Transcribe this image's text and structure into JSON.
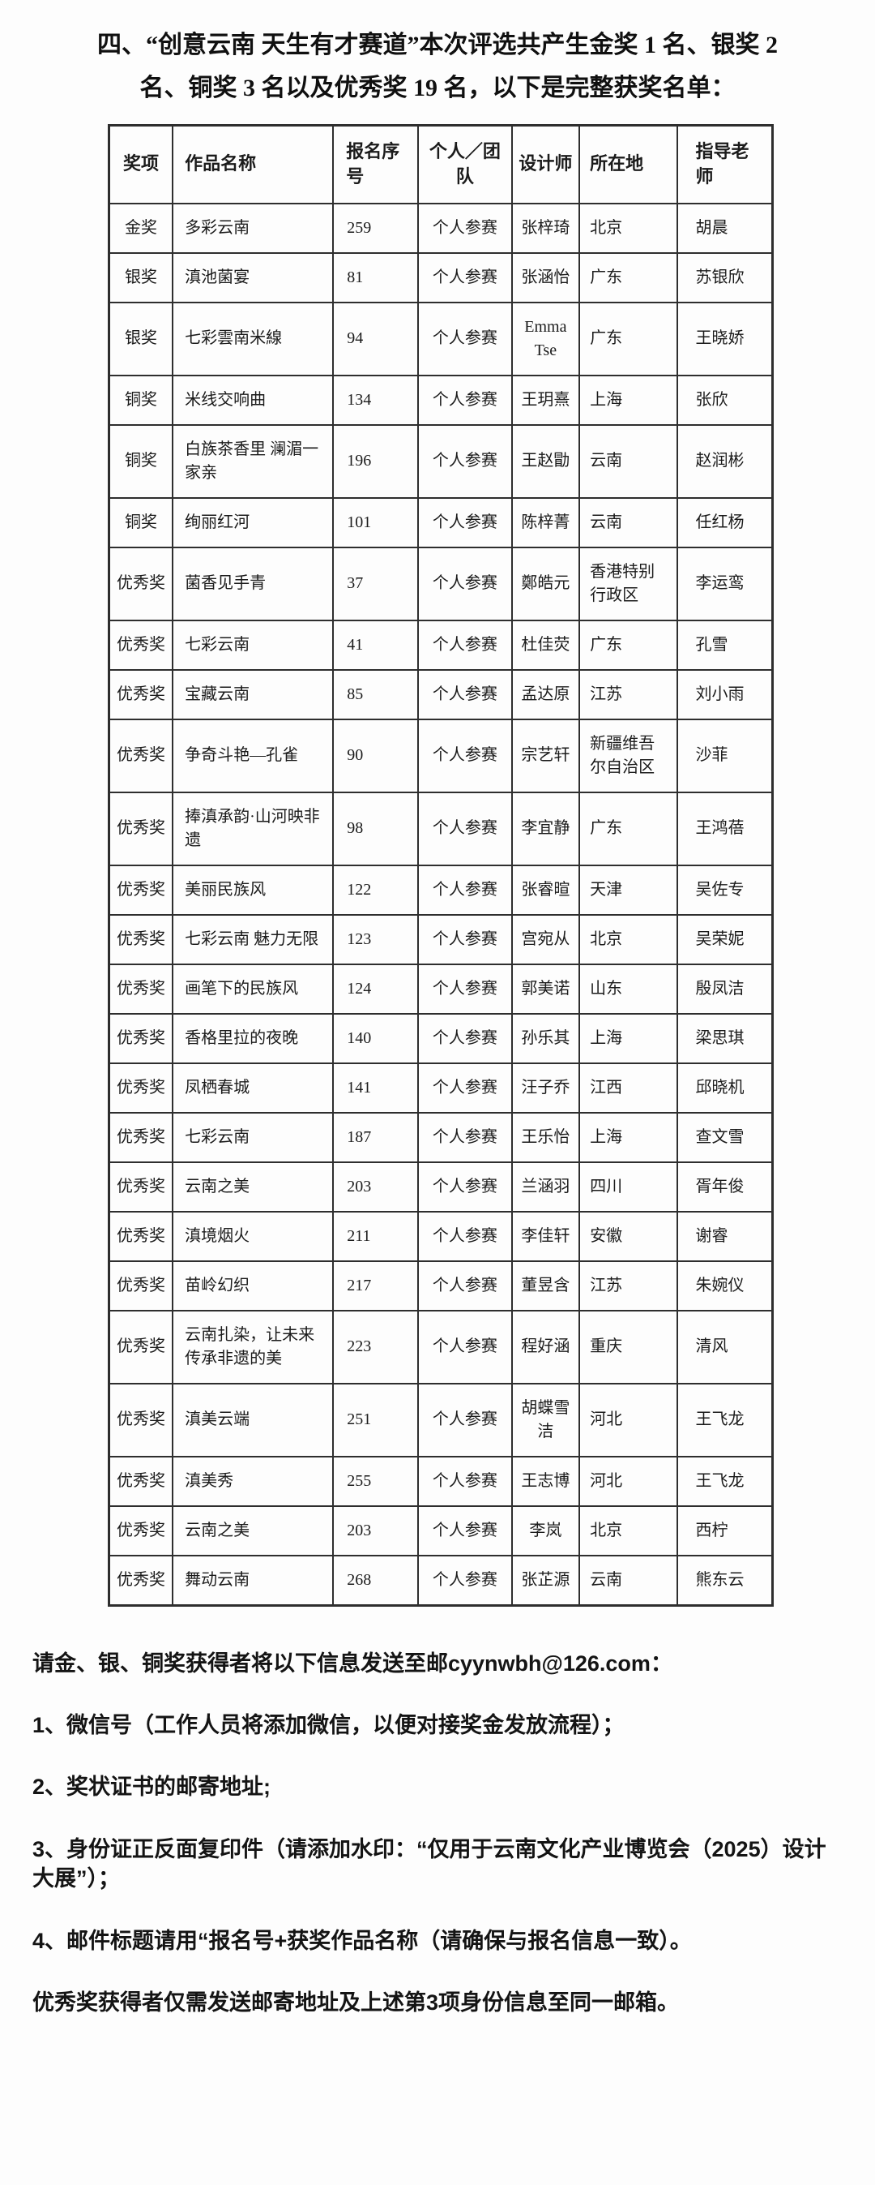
{
  "title": {
    "line1": "四、“创意云南 天生有才赛道”本次评选共产生金奖 1 名、银奖 2",
    "line2": "名、铜奖 3 名以及优秀奖 19 名，以下是完整获奖名单："
  },
  "table": {
    "columns": [
      "奖项",
      "作品名称",
      "报名序号",
      "个人／团队",
      "设计师",
      "所在地",
      "指导老师"
    ],
    "rows": [
      {
        "award": "金奖",
        "work": "多彩云南",
        "entry_no": "259",
        "type": "个人参赛",
        "designer": "张梓琦",
        "location": "北京",
        "teacher": "胡晨"
      },
      {
        "award": "银奖",
        "work": "滇池菌宴",
        "entry_no": "81",
        "type": "个人参赛",
        "designer": "张涵怡",
        "location": "广东",
        "teacher": "苏银欣"
      },
      {
        "award": "银奖",
        "work": "七彩雲南米線",
        "entry_no": "94",
        "type": "个人参赛",
        "designer": "Emma Tse",
        "location": "广东",
        "teacher": "王晓娇"
      },
      {
        "award": "铜奖",
        "work": "米线交响曲",
        "entry_no": "134",
        "type": "个人参赛",
        "designer": "王玥熹",
        "location": "上海",
        "teacher": "张欣"
      },
      {
        "award": "铜奖",
        "work": "白族茶香里 澜湄一家亲",
        "entry_no": "196",
        "type": "个人参赛",
        "designer": "王赵勖",
        "location": "云南",
        "teacher": "赵润彬"
      },
      {
        "award": "铜奖",
        "work": "绚丽红河",
        "entry_no": "101",
        "type": "个人参赛",
        "designer": "陈梓菁",
        "location": "云南",
        "teacher": "任红杨"
      },
      {
        "award": "优秀奖",
        "work": "菌香见手青",
        "entry_no": "37",
        "type": "个人参赛",
        "designer": "鄭皓元",
        "location": "香港特别行政区",
        "teacher": "李运鸾"
      },
      {
        "award": "优秀奖",
        "work": "七彩云南",
        "entry_no": "41",
        "type": "个人参赛",
        "designer": "杜佳荧",
        "location": "广东",
        "teacher": "孔雪"
      },
      {
        "award": "优秀奖",
        "work": "宝藏云南",
        "entry_no": "85",
        "type": "个人参赛",
        "designer": "孟达原",
        "location": "江苏",
        "teacher": "刘小雨"
      },
      {
        "award": "优秀奖",
        "work": "争奇斗艳—孔雀",
        "entry_no": "90",
        "type": "个人参赛",
        "designer": "宗艺轩",
        "location": "新疆维吾尔自治区",
        "teacher": "沙菲"
      },
      {
        "award": "优秀奖",
        "work": "捧滇承韵·山河映非遗",
        "entry_no": "98",
        "type": "个人参赛",
        "designer": "李宜静",
        "location": "广东",
        "teacher": "王鸿蓓"
      },
      {
        "award": "优秀奖",
        "work": "美丽民族风",
        "entry_no": "122",
        "type": "个人参赛",
        "designer": "张睿暄",
        "location": "天津",
        "teacher": "吴佐专"
      },
      {
        "award": "优秀奖",
        "work": "七彩云南 魅力无限",
        "entry_no": "123",
        "type": "个人参赛",
        "designer": "宫宛从",
        "location": "北京",
        "teacher": "吴荣妮"
      },
      {
        "award": "优秀奖",
        "work": "画笔下的民族风",
        "entry_no": "124",
        "type": "个人参赛",
        "designer": "郭美诺",
        "location": "山东",
        "teacher": "殷凤洁"
      },
      {
        "award": "优秀奖",
        "work": "香格里拉的夜晚",
        "entry_no": "140",
        "type": "个人参赛",
        "designer": "孙乐其",
        "location": "上海",
        "teacher": "梁思琪"
      },
      {
        "award": "优秀奖",
        "work": "凤栖春城",
        "entry_no": "141",
        "type": "个人参赛",
        "designer": "汪子乔",
        "location": "江西",
        "teacher": "邱晓机"
      },
      {
        "award": "优秀奖",
        "work": "七彩云南",
        "entry_no": "187",
        "type": "个人参赛",
        "designer": "王乐怡",
        "location": "上海",
        "teacher": "查文雪"
      },
      {
        "award": "优秀奖",
        "work": "云南之美",
        "entry_no": "203",
        "type": "个人参赛",
        "designer": "兰涵羽",
        "location": "四川",
        "teacher": "胥年俊"
      },
      {
        "award": "优秀奖",
        "work": "滇境烟火",
        "entry_no": "211",
        "type": "个人参赛",
        "designer": "李佳轩",
        "location": "安徽",
        "teacher": "谢睿"
      },
      {
        "award": "优秀奖",
        "work": "苗岭幻织",
        "entry_no": "217",
        "type": "个人参赛",
        "designer": "董昱含",
        "location": "江苏",
        "teacher": "朱婉仪"
      },
      {
        "award": "优秀奖",
        "work": "云南扎染，让未来传承非遗的美",
        "entry_no": "223",
        "type": "个人参赛",
        "designer": "程好涵",
        "location": "重庆",
        "teacher": "清风"
      },
      {
        "award": "优秀奖",
        "work": "滇美云端",
        "entry_no": "251",
        "type": "个人参赛",
        "designer": "胡蝶雪洁",
        "location": "河北",
        "teacher": "王飞龙"
      },
      {
        "award": "优秀奖",
        "work": "滇美秀",
        "entry_no": "255",
        "type": "个人参赛",
        "designer": "王志博",
        "location": "河北",
        "teacher": "王飞龙"
      },
      {
        "award": "优秀奖",
        "work": "云南之美",
        "entry_no": "203",
        "type": "个人参赛",
        "designer": "李岚",
        "location": "北京",
        "teacher": "西柠"
      },
      {
        "award": "优秀奖",
        "work": "舞动云南",
        "entry_no": "268",
        "type": "个人参赛",
        "designer": "张芷源",
        "location": "云南",
        "teacher": "熊东云"
      }
    ]
  },
  "footer": {
    "intro": "请金、银、铜奖获得者将以下信息发送至邮cyynwbh@126.com：",
    "items": [
      "1、微信号（工作人员将添加微信，以便对接奖金发放流程）；",
      "2、奖状证书的邮寄地址;",
      "3、身份证正反面复印件（请添加水印：“仅用于云南文化产业博览会（2025）设计大展”）；",
      "4、邮件标题请用“报名号+获奖作品名称（请确保与报名信息一致）。"
    ],
    "note": "优秀奖获得者仅需发送邮寄地址及上述第3项身份信息至同一邮箱。"
  }
}
